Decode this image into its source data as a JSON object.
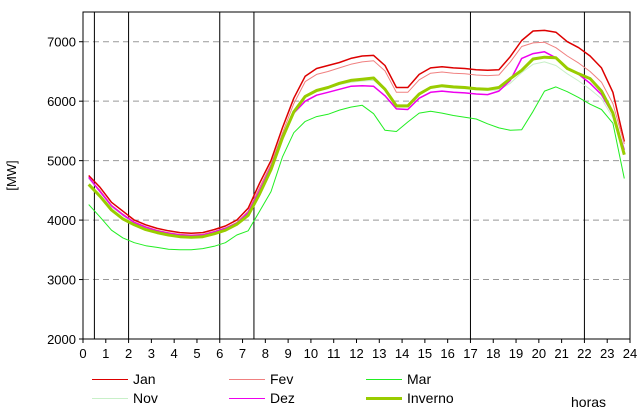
{
  "chart_data": {
    "type": "line",
    "ylabel": "[MW]",
    "xlabel": "horas",
    "xlim": [
      0,
      24
    ],
    "ylim": [
      2000,
      7500
    ],
    "xticks": [
      0,
      1,
      2,
      3,
      4,
      5,
      6,
      7,
      8,
      9,
      10,
      11,
      12,
      13,
      14,
      15,
      16,
      17,
      18,
      19,
      20,
      21,
      22,
      23,
      24
    ],
    "yticks": [
      2000,
      3000,
      4000,
      5000,
      6000,
      7000
    ],
    "grid": "horizontal-dashed",
    "vlines": [
      0.5,
      2,
      6,
      7.5,
      17,
      22
    ],
    "x": [
      0.25,
      0.75,
      1.25,
      1.75,
      2.25,
      2.75,
      3.25,
      3.75,
      4.25,
      4.75,
      5.25,
      5.75,
      6.25,
      6.75,
      7.25,
      7.75,
      8.25,
      8.75,
      9.25,
      9.75,
      10.25,
      10.75,
      11.25,
      11.75,
      12.25,
      12.75,
      13.25,
      13.75,
      14.25,
      14.75,
      15.25,
      15.75,
      16.25,
      16.75,
      17.25,
      17.75,
      18.25,
      18.75,
      19.25,
      19.75,
      20.25,
      20.75,
      21.25,
      21.75,
      22.25,
      22.75,
      23.25,
      23.75
    ],
    "series": [
      {
        "name": "Jan",
        "color": "#dd0000",
        "width": 1.5,
        "values": [
          4750,
          4550,
          4300,
          4150,
          4000,
          3920,
          3860,
          3820,
          3790,
          3780,
          3790,
          3840,
          3900,
          4000,
          4200,
          4620,
          5000,
          5550,
          6050,
          6420,
          6550,
          6600,
          6650,
          6720,
          6760,
          6770,
          6600,
          6230,
          6230,
          6450,
          6560,
          6580,
          6560,
          6550,
          6530,
          6520,
          6530,
          6750,
          7020,
          7180,
          7190,
          7160,
          7000,
          6900,
          6760,
          6560,
          6150,
          5320
        ]
      },
      {
        "name": "Fev",
        "color": "#f08080",
        "width": 1,
        "values": [
          4700,
          4500,
          4250,
          4100,
          3970,
          3890,
          3830,
          3790,
          3760,
          3750,
          3760,
          3810,
          3870,
          3960,
          4150,
          4550,
          4940,
          5460,
          5960,
          6330,
          6450,
          6500,
          6560,
          6620,
          6660,
          6680,
          6510,
          6150,
          6150,
          6360,
          6470,
          6490,
          6470,
          6460,
          6440,
          6430,
          6440,
          6660,
          6920,
          6980,
          6990,
          6900,
          6760,
          6640,
          6500,
          6320,
          5960,
          5280
        ]
      },
      {
        "name": "Mar",
        "color": "#22ee22",
        "width": 1,
        "values": [
          4260,
          4050,
          3830,
          3700,
          3620,
          3570,
          3540,
          3510,
          3500,
          3500,
          3520,
          3560,
          3620,
          3750,
          3820,
          4150,
          4480,
          5060,
          5470,
          5660,
          5740,
          5780,
          5850,
          5900,
          5930,
          5790,
          5510,
          5490,
          5650,
          5800,
          5830,
          5800,
          5760,
          5730,
          5700,
          5620,
          5550,
          5510,
          5520,
          5830,
          6170,
          6240,
          6160,
          6060,
          5950,
          5860,
          5630,
          4700
        ]
      },
      {
        "name": "Nov",
        "color": "#c8f0c8",
        "width": 1,
        "values": [
          4700,
          4470,
          4220,
          4070,
          3940,
          3860,
          3800,
          3760,
          3730,
          3720,
          3730,
          3780,
          3840,
          3930,
          4100,
          4480,
          4880,
          5400,
          5820,
          6080,
          6180,
          6220,
          6280,
          6320,
          6340,
          6350,
          6200,
          5900,
          5900,
          6100,
          6220,
          6240,
          6220,
          6210,
          6190,
          6180,
          6190,
          6300,
          6480,
          6620,
          6660,
          6600,
          6460,
          6340,
          6200,
          6040,
          5720,
          5100
        ]
      },
      {
        "name": "Dez",
        "color": "#ee00ee",
        "width": 1.5,
        "values": [
          4720,
          4480,
          4240,
          4090,
          3960,
          3880,
          3820,
          3780,
          3750,
          3740,
          3750,
          3800,
          3860,
          3950,
          4130,
          4500,
          4900,
          5420,
          5800,
          6000,
          6100,
          6150,
          6200,
          6250,
          6260,
          6250,
          6090,
          5870,
          5860,
          6050,
          6150,
          6170,
          6150,
          6140,
          6120,
          6110,
          6170,
          6350,
          6720,
          6800,
          6830,
          6730,
          6560,
          6450,
          6300,
          6110,
          5780,
          5180
        ]
      },
      {
        "name": "Inverno",
        "color": "#99cc00",
        "width": 3,
        "values": [
          4600,
          4400,
          4170,
          4020,
          3920,
          3840,
          3790,
          3750,
          3720,
          3710,
          3720,
          3770,
          3830,
          3930,
          4080,
          4440,
          4850,
          5380,
          5820,
          6080,
          6180,
          6230,
          6300,
          6350,
          6370,
          6390,
          6200,
          5920,
          5920,
          6120,
          6230,
          6260,
          6240,
          6230,
          6210,
          6200,
          6230,
          6380,
          6520,
          6710,
          6740,
          6730,
          6550,
          6460,
          6380,
          6170,
          5800,
          5100
        ]
      }
    ]
  },
  "legend": {
    "items": [
      {
        "label": "Jan",
        "color": "#dd0000",
        "width": 1.5
      },
      {
        "label": "Fev",
        "color": "#f08080",
        "width": 1
      },
      {
        "label": "Mar",
        "color": "#22ee22",
        "width": 1
      },
      {
        "label": "Nov",
        "color": "#c8f0c8",
        "width": 1
      },
      {
        "label": "Dez",
        "color": "#ee00ee",
        "width": 1.5
      },
      {
        "label": "Inverno",
        "color": "#99cc00",
        "width": 3
      }
    ]
  }
}
